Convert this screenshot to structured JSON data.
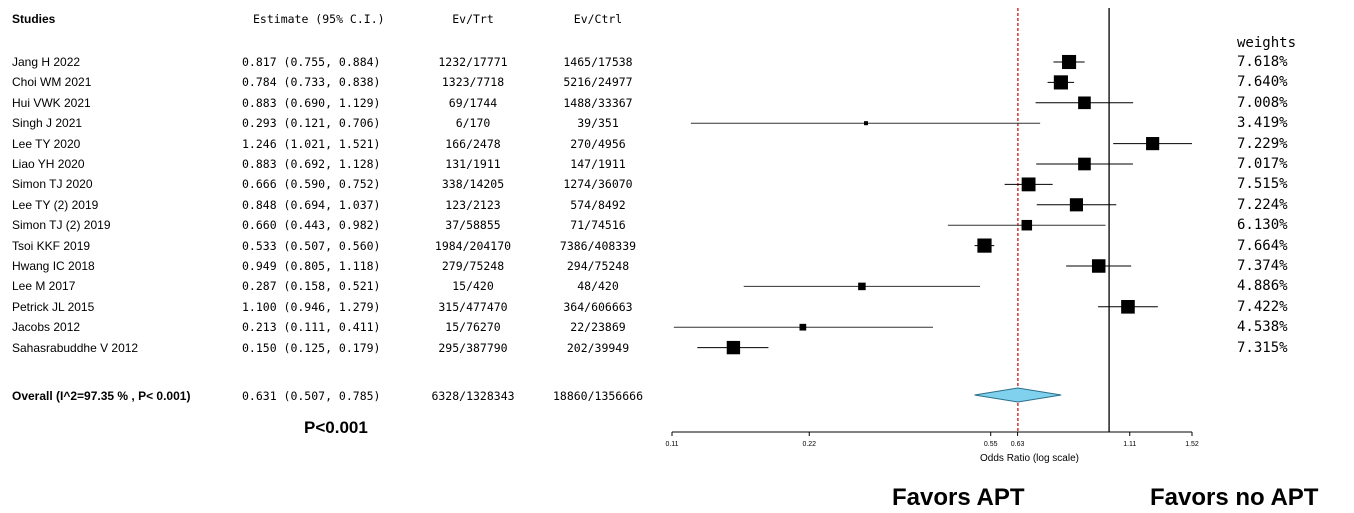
{
  "headers": {
    "studies": "Studies",
    "estimate": "Estimate (95% C.I.)",
    "ev_trt": "Ev/Trt",
    "ev_ctrl": "Ev/Ctrl",
    "weights": "weights"
  },
  "overall": {
    "label": "Overall (I^2=97.35 % , P< 0.001)",
    "estimate_text": "0.631  (0.507, 0.785)",
    "ev_trt": "6328/1328343",
    "ev_ctrl": "18860/1356666",
    "or": 0.631,
    "lo": 0.507,
    "hi": 0.785
  },
  "p_value_text": "P<0.001",
  "favors_left": "Favors APT",
  "favors_right": "Favors no APT",
  "colors": {
    "diamond_fill": "#7fd1ee",
    "reference_line": "#cc0000",
    "ci_line_gray": "#777777"
  },
  "chart_data": {
    "type": "forest",
    "xlabel": "Odds Ratio (log scale)",
    "x_scale": "log",
    "xlim": [
      0.11,
      1.52
    ],
    "x_ticks": [
      0.11,
      0.22,
      0.55,
      0.63,
      1.11,
      1.52
    ],
    "x_tick_labels": [
      "0.11",
      "0.22",
      "0.55",
      "0.63",
      "1.11",
      "1.52"
    ],
    "null_line": 1.0,
    "pooled_reference_line": 0.631,
    "studies": [
      {
        "name": "Jang H 2022",
        "or": 0.817,
        "lo": 0.755,
        "hi": 0.884,
        "estimate_text": "0.817  (0.755, 0.884)",
        "ev_trt": "1232/17771",
        "ev_ctrl": "1465/17538",
        "weight": 7.618,
        "weight_text": "7.618%"
      },
      {
        "name": "Choi WM  2021",
        "or": 0.784,
        "lo": 0.733,
        "hi": 0.838,
        "estimate_text": "0.784  (0.733, 0.838)",
        "ev_trt": "1323/7718",
        "ev_ctrl": "5216/24977",
        "weight": 7.64,
        "weight_text": "7.640%"
      },
      {
        "name": "Hui VWK  2021",
        "or": 0.883,
        "lo": 0.69,
        "hi": 1.129,
        "estimate_text": "0.883  (0.690, 1.129)",
        "ev_trt": "69/1744",
        "ev_ctrl": "1488/33367",
        "weight": 7.008,
        "weight_text": "7.008%"
      },
      {
        "name": "Singh J  2021",
        "or": 0.293,
        "lo": 0.121,
        "hi": 0.706,
        "estimate_text": "0.293  (0.121, 0.706)",
        "ev_trt": "6/170",
        "ev_ctrl": "39/351",
        "weight": 3.419,
        "weight_text": "3.419%"
      },
      {
        "name": "Lee TY  2020",
        "or": 1.246,
        "lo": 1.021,
        "hi": 1.521,
        "estimate_text": "1.246  (1.021, 1.521)",
        "ev_trt": "166/2478",
        "ev_ctrl": "270/4956",
        "weight": 7.229,
        "weight_text": "7.229%"
      },
      {
        "name": "Liao YH  2020",
        "or": 0.883,
        "lo": 0.692,
        "hi": 1.128,
        "estimate_text": "0.883  (0.692, 1.128)",
        "ev_trt": "131/1911",
        "ev_ctrl": "147/1911",
        "weight": 7.017,
        "weight_text": "7.017%"
      },
      {
        "name": "Simon TJ  2020",
        "or": 0.666,
        "lo": 0.59,
        "hi": 0.752,
        "estimate_text": "0.666  (0.590, 0.752)",
        "ev_trt": "338/14205",
        "ev_ctrl": "1274/36070",
        "weight": 7.515,
        "weight_text": "7.515%"
      },
      {
        "name": "Lee TY (2) 2019",
        "or": 0.848,
        "lo": 0.694,
        "hi": 1.037,
        "estimate_text": "0.848  (0.694, 1.037)",
        "ev_trt": "123/2123",
        "ev_ctrl": "574/8492",
        "weight": 7.224,
        "weight_text": "7.224%"
      },
      {
        "name": "Simon TJ (2) 2019",
        "or": 0.66,
        "lo": 0.443,
        "hi": 0.982,
        "estimate_text": "0.660  (0.443, 0.982)",
        "ev_trt": "37/58855",
        "ev_ctrl": "71/74516",
        "weight": 6.13,
        "weight_text": "6.130%"
      },
      {
        "name": "Tsoi KKF 2019",
        "or": 0.533,
        "lo": 0.507,
        "hi": 0.56,
        "estimate_text": "0.533  (0.507, 0.560)",
        "ev_trt": "1984/204170",
        "ev_ctrl": "7386/408339",
        "weight": 7.664,
        "weight_text": "7.664%"
      },
      {
        "name": "Hwang IC  2018",
        "or": 0.949,
        "lo": 0.805,
        "hi": 1.118,
        "estimate_text": "0.949  (0.805, 1.118)",
        "ev_trt": "279/75248",
        "ev_ctrl": "294/75248",
        "weight": 7.374,
        "weight_text": "7.374%"
      },
      {
        "name": "Lee M  2017",
        "or": 0.287,
        "lo": 0.158,
        "hi": 0.521,
        "estimate_text": "0.287  (0.158, 0.521)",
        "ev_trt": "15/420",
        "ev_ctrl": "48/420",
        "weight": 4.886,
        "weight_text": "4.886%"
      },
      {
        "name": " Petrick JL 2015",
        "or": 1.1,
        "lo": 0.946,
        "hi": 1.279,
        "estimate_text": "1.100  (0.946, 1.279)",
        "ev_trt": "315/477470",
        "ev_ctrl": "364/606663",
        "weight": 7.422,
        "weight_text": "7.422%"
      },
      {
        "name": "Jacobs 2012",
        "or": 0.213,
        "lo": 0.111,
        "hi": 0.411,
        "estimate_text": "0.213  (0.111, 0.411)",
        "ev_trt": "15/76270",
        "ev_ctrl": "22/23869",
        "weight": 4.538,
        "weight_text": "4.538%"
      },
      {
        "name": "Sahasrabuddhe V  2012",
        "or": 0.15,
        "lo": 0.125,
        "hi": 0.179,
        "estimate_text": "0.150  (0.125, 0.179)",
        "ev_trt": "295/387790",
        "ev_ctrl": "202/39949",
        "weight": 7.315,
        "weight_text": "7.315%"
      }
    ]
  }
}
